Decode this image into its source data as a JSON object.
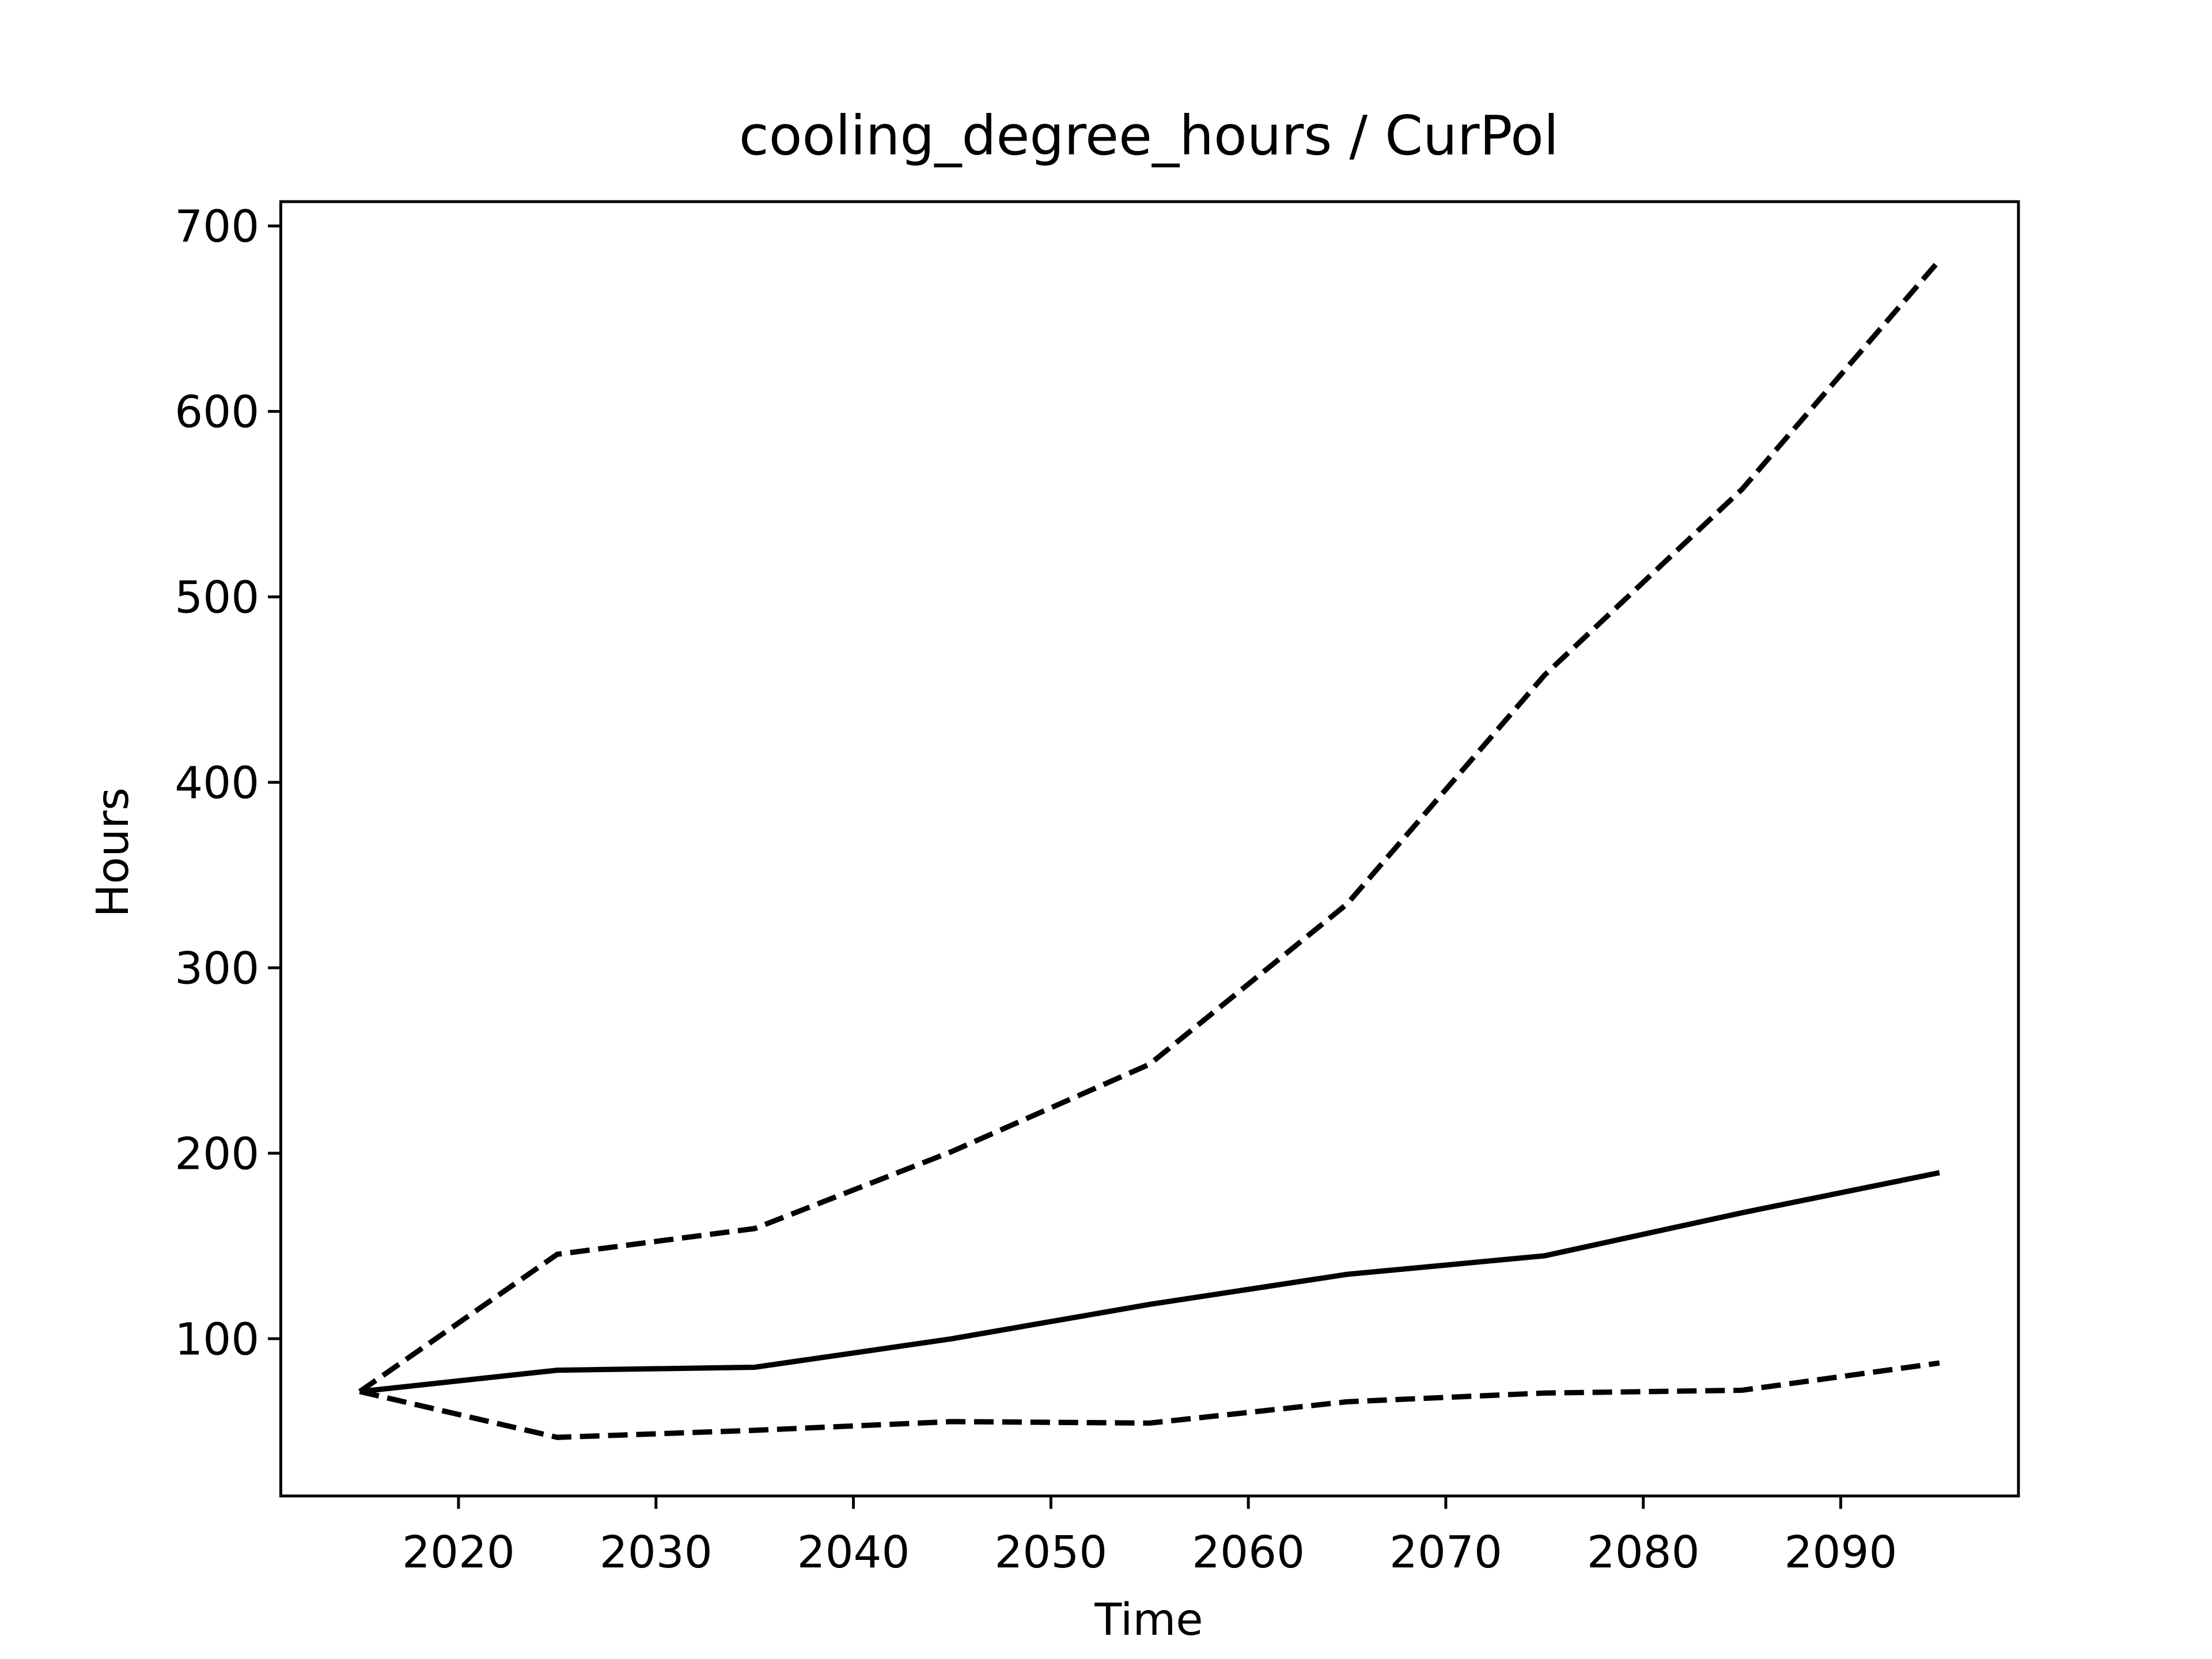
{
  "chart_data": {
    "type": "line",
    "title": "cooling_degree_hours / CurPol",
    "x_label": "Time",
    "y_label": "Hours",
    "x": [
      2015,
      2025,
      2035,
      2045,
      2055,
      2065,
      2075,
      2085,
      2095
    ],
    "series": [
      {
        "color": "#000000",
        "dash": false,
        "values": [
          71.5,
          83,
          84.6,
          100,
          118.5,
          134.7,
          144.7,
          167.9,
          189.5
        ]
      },
      {
        "color": "#000000",
        "dash": true,
        "values": [
          71.5,
          145.5,
          159.4,
          201,
          248,
          334.4,
          457.8,
          558,
          681.5
        ]
      },
      {
        "color": "#000000",
        "dash": true,
        "values": [
          71.5,
          46.8,
          50.6,
          55.3,
          54.5,
          66,
          70.7,
          72.2,
          86.9
        ]
      }
    ],
    "xlim": [
      2011,
      2099
    ],
    "ylim": [
      15.2,
      713.1
    ],
    "xticks": [
      2020,
      2030,
      2040,
      2050,
      2060,
      2070,
      2080,
      2090
    ],
    "yticks": [
      100,
      200,
      300,
      400,
      500,
      600,
      700
    ],
    "grid": false
  }
}
